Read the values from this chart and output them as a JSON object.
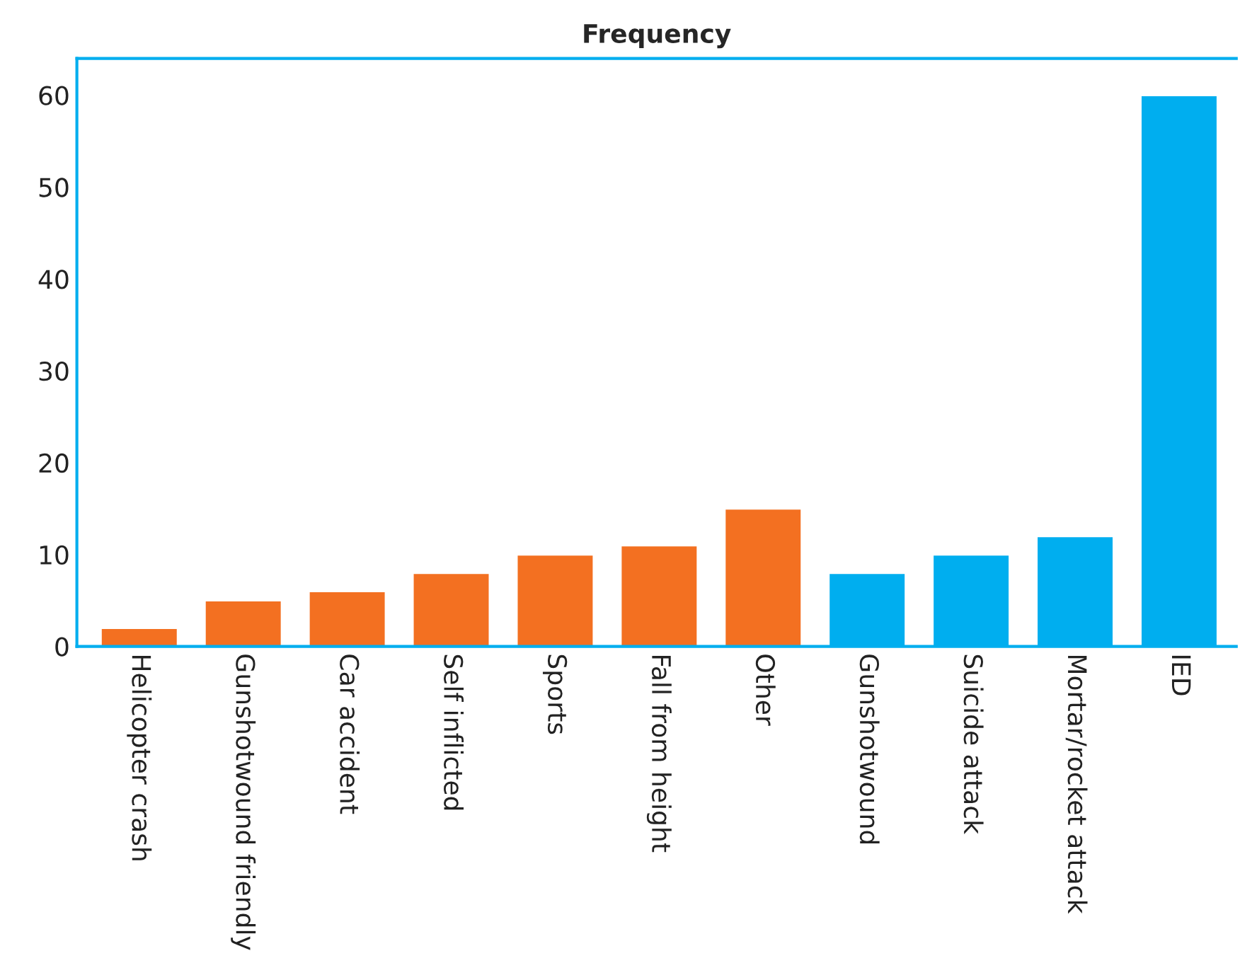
{
  "chart_data": {
    "type": "bar",
    "title": "Frequency",
    "categories": [
      "Helicopter crash",
      "Gunshotwound friendly",
      "Car accident",
      "Self inflicted",
      "Sports",
      "Fall from height",
      "Other",
      "Gunshotwound",
      "Suicide attack",
      "Mortar/rocket attack",
      "IED"
    ],
    "values": [
      2,
      5,
      6,
      8,
      10,
      11,
      15,
      8,
      10,
      12,
      60
    ],
    "colors": [
      "#f37021",
      "#f37021",
      "#f37021",
      "#f37021",
      "#f37021",
      "#f37021",
      "#f37021",
      "#00aeef",
      "#00aeef",
      "#00aeef",
      "#00aeef"
    ],
    "ylim": [
      0,
      64
    ],
    "yticks": [
      0,
      10,
      20,
      30,
      40,
      50,
      60
    ],
    "grid": false,
    "legend": false
  }
}
